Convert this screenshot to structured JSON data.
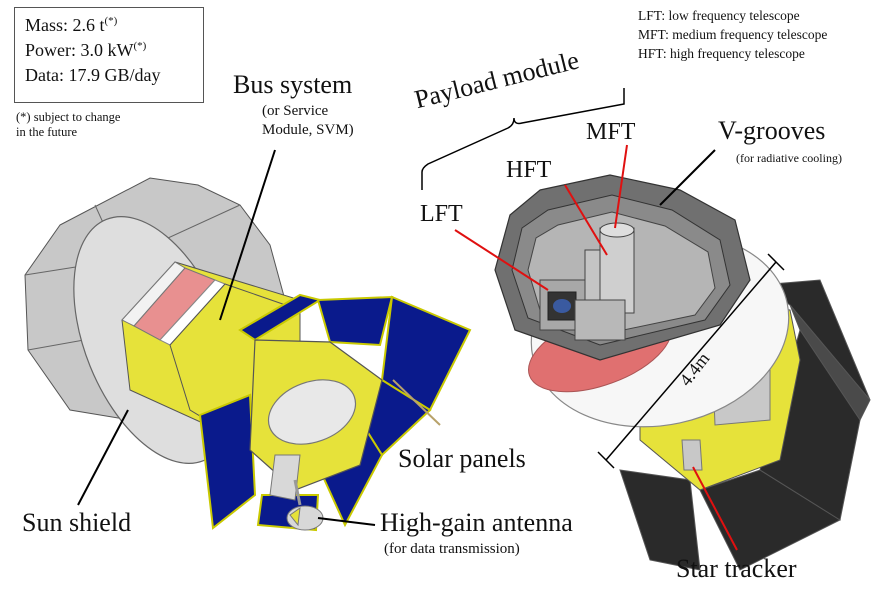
{
  "specs": {
    "mass": "Mass: 2.6 t",
    "power": "Power: 3.0 kW",
    "data": "Data: 17.9 GB/day",
    "footnote_mark": "(*)",
    "footnote_line1": "(*) subject to change",
    "footnote_line2": "in the future"
  },
  "legend": {
    "lft": "LFT: low frequency telescope",
    "mft": "MFT: medium frequency telescope",
    "hft": "HFT: high frequency telescope"
  },
  "labels": {
    "bus_system": "Bus system",
    "bus_sub1": "(or Service",
    "bus_sub2": "Module, SVM)",
    "payload_module": "Payload module",
    "mft": "MFT",
    "hft": "HFT",
    "lft": "LFT",
    "vgrooves": "V-grooves",
    "vgrooves_sub": "(for radiative cooling)",
    "solar_panels": "Solar panels",
    "sun_shield": "Sun shield",
    "antenna": "High-gain antenna",
    "antenna_sub": "(for data transmission)",
    "star_tracker": "Star tracker",
    "dimension": "4.4m"
  },
  "colors": {
    "panel_blue": "#0a1a8c",
    "body_yellow": "#e6e23a",
    "shield_gray": "#d9d9d9",
    "dark_gray": "#6e6e6e",
    "leader_red": "#e01010",
    "pink": "#e89090"
  }
}
